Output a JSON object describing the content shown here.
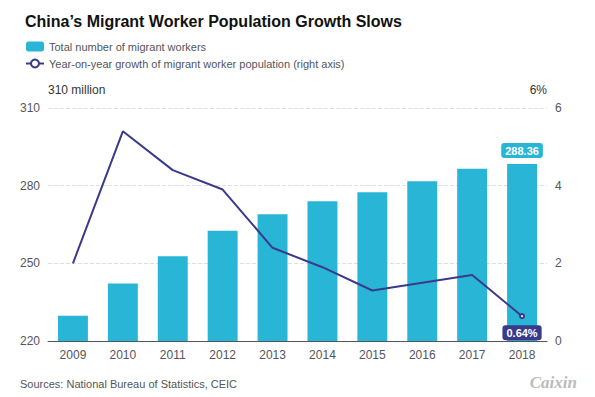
{
  "chart_data": {
    "type": "bar",
    "title": "China’s Migrant Worker Population Growth Slows",
    "categories": [
      "2009",
      "2010",
      "2011",
      "2012",
      "2013",
      "2014",
      "2015",
      "2016",
      "2017",
      "2018"
    ],
    "series": [
      {
        "name": "Total number of migrant workers",
        "type": "bar",
        "color": "#29b6d6",
        "values": [
          229.78,
          242.23,
          252.78,
          262.61,
          268.94,
          273.95,
          277.47,
          281.71,
          286.52,
          288.36
        ]
      },
      {
        "name": "Year-on-year growth of migrant worker population (right axis)",
        "type": "line",
        "color": "#3a3a8c",
        "axis": "y2",
        "values": [
          2.0,
          5.4,
          4.4,
          3.9,
          2.4,
          1.9,
          1.3,
          1.5,
          1.7,
          0.64
        ]
      }
    ],
    "ylabel": "310 million",
    "y2label": "6%",
    "ylim": [
      220,
      310
    ],
    "yticks": [
      220,
      250,
      280,
      310
    ],
    "y2lim": [
      0,
      6
    ],
    "y2ticks": [
      0,
      2,
      4,
      6
    ],
    "grid": true,
    "legend": "upper left",
    "annotations": [
      {
        "text": "288.36",
        "x": "2018",
        "y": 288.36
      },
      {
        "text": "0.64%",
        "x": "2018",
        "y": 0.64,
        "axis": "y2"
      }
    ],
    "source": "Sources: National Bureau of Statistics, CEIC",
    "credit": "Caixin"
  }
}
